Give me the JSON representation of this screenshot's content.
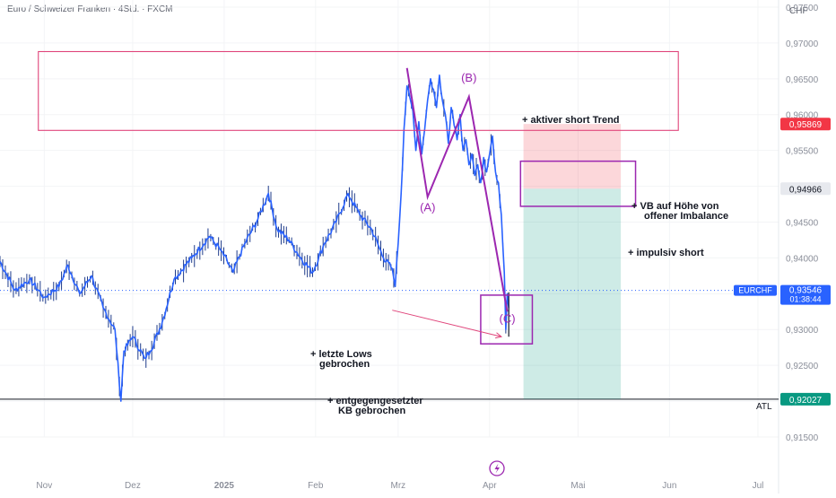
{
  "header": {
    "title": "Euro / Schweizer Franken · 4Std. · FXCM",
    "currency": "CHF"
  },
  "chart_data": {
    "type": "line",
    "symbol": "EURCHF",
    "timeframe": "4Std.",
    "ylim": [
      0.915,
      0.976
    ],
    "yticks": [
      0.975,
      0.97,
      0.965,
      0.96,
      0.955,
      0.95,
      0.945,
      0.94,
      0.935,
      0.93,
      0.925,
      0.92,
      0.915
    ],
    "ytick_labels": [
      "0,97500",
      "0,97000",
      "0,96500",
      "0,96000",
      "0,95500",
      "0,95000",
      "0,94500",
      "0,94000",
      "0,93500",
      "0,93000",
      "0,92500",
      "0,92000",
      "0,91500"
    ],
    "xticks": [
      {
        "t": 0,
        "label": "Nov"
      },
      {
        "t": 30,
        "label": "Dez"
      },
      {
        "t": 61,
        "label": "2025"
      },
      {
        "t": 92,
        "label": "Feb"
      },
      {
        "t": 120,
        "label": "Mrz"
      },
      {
        "t": 151,
        "label": "Apr"
      },
      {
        "t": 181,
        "label": "Mai"
      },
      {
        "t": 212,
        "label": "Jun"
      },
      {
        "t": 242,
        "label": "Jul"
      }
    ],
    "xlim": [
      -15,
      249
    ],
    "price_path": [
      [
        -15,
        0.9395
      ],
      [
        -10,
        0.9355
      ],
      [
        -5,
        0.937
      ],
      [
        0,
        0.9345
      ],
      [
        5,
        0.936
      ],
      [
        8,
        0.939
      ],
      [
        12,
        0.935
      ],
      [
        16,
        0.9375
      ],
      [
        20,
        0.933
      ],
      [
        24,
        0.93
      ],
      [
        26,
        0.92
      ],
      [
        27,
        0.927
      ],
      [
        30,
        0.929
      ],
      [
        34,
        0.926
      ],
      [
        36,
        0.927
      ],
      [
        40,
        0.931
      ],
      [
        44,
        0.937
      ],
      [
        50,
        0.94
      ],
      [
        56,
        0.943
      ],
      [
        60,
        0.941
      ],
      [
        64,
        0.938
      ],
      [
        68,
        0.942
      ],
      [
        72,
        0.945
      ],
      [
        76,
        0.949
      ],
      [
        79,
        0.944
      ],
      [
        83,
        0.9425
      ],
      [
        87,
        0.94
      ],
      [
        91,
        0.938
      ],
      [
        95,
        0.942
      ],
      [
        99,
        0.945
      ],
      [
        103,
        0.949
      ],
      [
        107,
        0.946
      ],
      [
        111,
        0.944
      ],
      [
        115,
        0.94
      ],
      [
        118,
        0.9385
      ],
      [
        119,
        0.936
      ],
      [
        120,
        0.942
      ],
      [
        121,
        0.949
      ],
      [
        122,
        0.958
      ],
      [
        123,
        0.964
      ],
      [
        125,
        0.9605
      ],
      [
        126,
        0.955
      ],
      [
        127,
        0.959
      ],
      [
        128,
        0.9545
      ],
      [
        129,
        0.958
      ],
      [
        130,
        0.962
      ],
      [
        131,
        0.965
      ],
      [
        132,
        0.9635
      ],
      [
        133,
        0.961
      ],
      [
        134,
        0.9655
      ],
      [
        135,
        0.962
      ],
      [
        136,
        0.96
      ],
      [
        137,
        0.956
      ],
      [
        138,
        0.961
      ],
      [
        139,
        0.9585
      ],
      [
        140,
        0.9565
      ],
      [
        141,
        0.96
      ],
      [
        142,
        0.955
      ],
      [
        143,
        0.9565
      ],
      [
        144,
        0.953
      ],
      [
        145,
        0.9545
      ],
      [
        146,
        0.9515
      ],
      [
        147,
        0.953
      ],
      [
        148,
        0.9505
      ],
      [
        149,
        0.954
      ],
      [
        150,
        0.952
      ],
      [
        151,
        0.9545
      ],
      [
        152,
        0.957
      ],
      [
        153,
        0.952
      ],
      [
        154,
        0.9505
      ],
      [
        155,
        0.946
      ],
      [
        156,
        0.938
      ],
      [
        156.5,
        0.93
      ],
      [
        157,
        0.935
      ],
      [
        157.5,
        0.933
      ]
    ],
    "last_price": 0.93546,
    "countdown": "01:38:44",
    "ath_ceiling_box": {
      "t0": -2,
      "t1": 215,
      "y0": 0.9578,
      "y1": 0.9688
    },
    "trade": {
      "t0": 162.5,
      "t1": 195.5,
      "stop": 0.95869,
      "entry": 0.94966,
      "target": 0.92027,
      "stop_label": "0,95869",
      "entry_label": "0,94966",
      "target_label": "0,92027"
    },
    "vb_box": {
      "t0": 161.5,
      "t1": 200.5,
      "y0": 0.9472,
      "y1": 0.9535
    },
    "c_box": {
      "t0": 148,
      "t1": 165.5,
      "y0": 0.928,
      "y1": 0.9348
    },
    "atl": 0.92027,
    "abc_wave": [
      [
        123,
        0.9665
      ],
      [
        130,
        0.9485
      ],
      [
        144,
        0.9625
      ],
      [
        157,
        0.9325
      ]
    ],
    "labels": {
      "A": {
        "t": 130,
        "y": 0.9465,
        "text": "(A)"
      },
      "B": {
        "t": 144,
        "y": 0.9646,
        "text": "(B)"
      },
      "C": {
        "t": 157,
        "y": 0.931,
        "text": "(C)"
      }
    },
    "arrow": {
      "from": [
        118,
        0.9327
      ],
      "to": [
        155,
        0.929
      ]
    },
    "annotations": {
      "short_trend": "+ aktiver short Trend",
      "vb_line1": "+ VB auf Höhe von",
      "vb_line2": "offener Imbalance",
      "impulsive": "+ impulsiv short",
      "lows_line1": "+ letzte Lows",
      "lows_line2": "gebrochen",
      "kb_line1": "+ entgegengesetzter",
      "kb_line2": "KB gebrochen"
    },
    "atl_label": "ATL",
    "price_label": "0,93546",
    "symbol_label": "EURCHF"
  }
}
